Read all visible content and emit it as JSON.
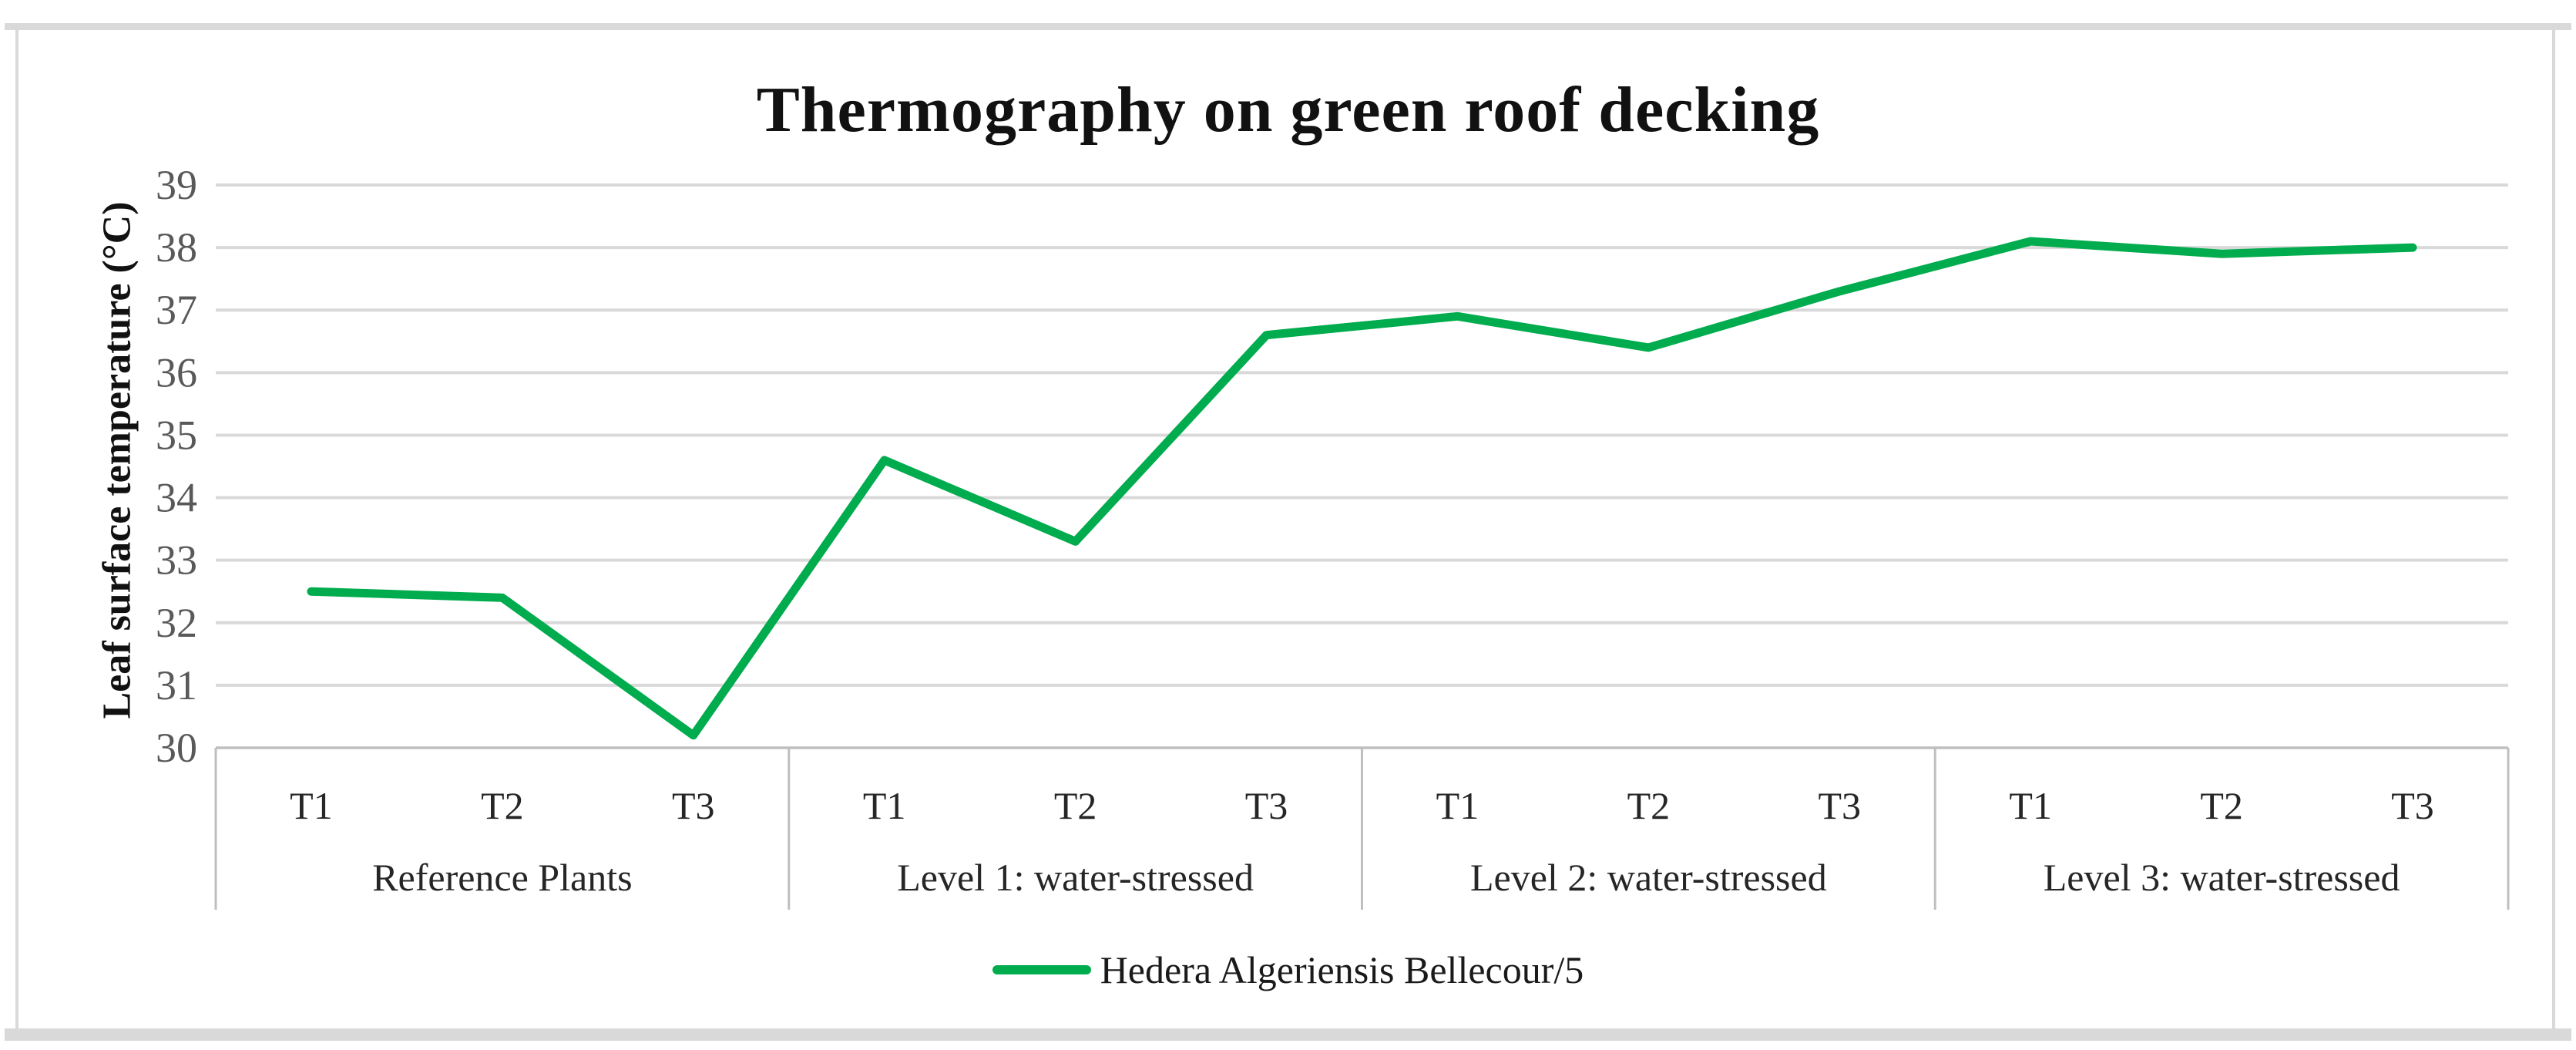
{
  "chart": {
    "title": "Thermography on green roof decking",
    "y_axis_title": "Leaf surface temperature (°C)",
    "legend_label": "Hedera Algeriensis Bellecour/5",
    "colors": {
      "series_green": "#00AC4D",
      "gridline": "#D9D9D9",
      "axis_line": "#BFBFBF",
      "frame": "#D9D9D9",
      "tick_label": "#595959",
      "category_label": "#262626",
      "title_text": "#111111"
    }
  },
  "chart_data": {
    "type": "line",
    "title": "Thermography on green roof decking",
    "xlabel": "",
    "ylabel": "Leaf surface temperature (°C)",
    "ylim": [
      30,
      39
    ],
    "yticks": [
      39,
      38,
      37,
      36,
      35,
      34,
      33,
      32,
      31,
      30
    ],
    "grid": true,
    "legend_position": "bottom",
    "groups": [
      {
        "label": "Reference Plants",
        "categories": [
          "T1",
          "T2",
          "T3"
        ],
        "values": [
          32.5,
          32.4,
          30.2
        ]
      },
      {
        "label": "Level 1: water-stressed",
        "categories": [
          "T1",
          "T2",
          "T3"
        ],
        "values": [
          34.6,
          33.3,
          36.6
        ]
      },
      {
        "label": "Level 2: water-stressed",
        "categories": [
          "T1",
          "T2",
          "T3"
        ],
        "values": [
          36.9,
          36.4,
          37.3
        ]
      },
      {
        "label": "Level 3: water-stressed",
        "categories": [
          "T1",
          "T2",
          "T3"
        ],
        "values": [
          38.1,
          37.9,
          38.0
        ]
      }
    ],
    "series": [
      {
        "name": "Hedera Algeriensis Bellecour/5",
        "color": "#00AC4D",
        "values": [
          32.5,
          32.4,
          30.2,
          34.6,
          33.3,
          36.6,
          36.9,
          36.4,
          37.3,
          38.1,
          37.9,
          38.0
        ]
      }
    ]
  }
}
